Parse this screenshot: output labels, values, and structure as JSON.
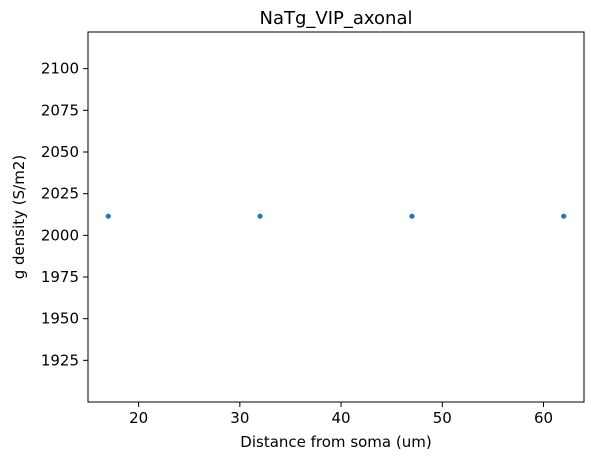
{
  "chart_data": {
    "type": "scatter",
    "title": "NaTg_VIP_axonal",
    "xlabel": "Distance from soma (um)",
    "ylabel": "g density (S/m2)",
    "xlim": [
      15,
      64
    ],
    "ylim": [
      1900,
      2122
    ],
    "xticks": [
      20,
      30,
      40,
      50,
      60
    ],
    "yticks": [
      1925,
      1950,
      1975,
      2000,
      2025,
      2050,
      2075,
      2100
    ],
    "grid": false,
    "series": [
      {
        "x": [
          17,
          32,
          47,
          62
        ],
        "y": [
          2011.5,
          2011.5,
          2011.5,
          2011.5
        ],
        "color": "#1f77b4",
        "marker": "dot"
      }
    ]
  }
}
